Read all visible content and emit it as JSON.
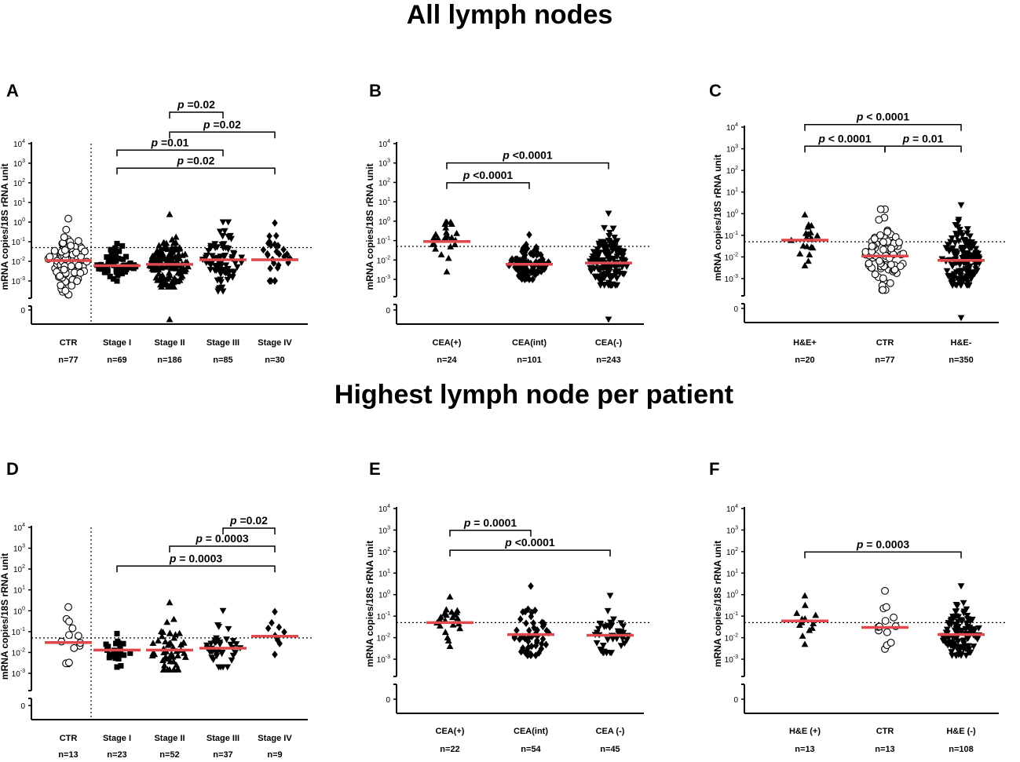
{
  "section_titles": {
    "top": "All lymph nodes",
    "bottom": "Highest lymph node per patient"
  },
  "y_axis": {
    "label": "mRNA copies/18S rRNA unit",
    "ticks": [
      {
        "base": "10",
        "exp": "4"
      },
      {
        "base": "10",
        "exp": "3"
      },
      {
        "base": "10",
        "exp": "2"
      },
      {
        "base": "10",
        "exp": "1"
      },
      {
        "base": "10",
        "exp": "0"
      },
      {
        "base": "10",
        "exp": "-1"
      },
      {
        "base": "10",
        "exp": "-2"
      },
      {
        "base": "10",
        "exp": "-3"
      }
    ],
    "zero_tick": "0"
  },
  "chart_data": [
    {
      "panel": "A",
      "type": "scatter",
      "threshold": 0.05,
      "ylim": [
        0.001,
        10000
      ],
      "scale": "log",
      "categories": [
        {
          "label": "CTR",
          "n_label": "n=77",
          "n": 77,
          "marker": "circle-open",
          "median": 0.011,
          "min": 0.0002,
          "max": 1.5
        },
        {
          "label": "Stage I",
          "n_label": "n=69",
          "n": 69,
          "marker": "square",
          "median": 0.006,
          "min": 0.001,
          "max": 0.08
        },
        {
          "label": "Stage II",
          "n_label": "n=186",
          "n": 186,
          "marker": "triangle-up",
          "median": 0.007,
          "min": 0.0005,
          "max": 2.5
        },
        {
          "label": "Stage III",
          "n_label": "n=85",
          "n": 85,
          "marker": "triangle-down",
          "median": 0.012,
          "min": 0.0003,
          "max": 1.0
        },
        {
          "label": "Stage IV",
          "n_label": "n=30",
          "n": 30,
          "marker": "diamond",
          "median": 0.012,
          "min": 0.001,
          "max": 0.9
        }
      ],
      "has_zero": [
        false,
        false,
        true,
        false,
        false
      ],
      "divider_after": 0,
      "comparisons": [
        {
          "from": 2,
          "to": 3,
          "label_p": "p",
          "label_rest": " =0.02",
          "level": 2.1
        },
        {
          "from": 2,
          "to": 4,
          "label_p": "p",
          "label_rest": " =0.02",
          "level": 1.0
        },
        {
          "from": 1,
          "to": 3,
          "label_p": "p",
          "label_rest": " =0.01",
          "level": 0.0
        },
        {
          "from": 1,
          "to": 4,
          "label_p": "p",
          "label_rest": " =0.02",
          "level": -1.0
        }
      ]
    },
    {
      "panel": "B",
      "type": "scatter",
      "threshold": 0.05,
      "ylim": [
        0.001,
        10000
      ],
      "scale": "log",
      "categories": [
        {
          "label": "CEA(+)",
          "n_label": "n=24",
          "n": 24,
          "marker": "triangle-up",
          "median": 0.09,
          "min": 0.0025,
          "max": 0.9
        },
        {
          "label": "CEA(int)",
          "n_label": "n=101",
          "n": 101,
          "marker": "diamond",
          "median": 0.006,
          "min": 0.001,
          "max": 0.2
        },
        {
          "label": "CEA(-)",
          "n_label": "n=243",
          "n": 243,
          "marker": "triangle-down",
          "median": 0.007,
          "min": 0.0005,
          "max": 2.5
        }
      ],
      "has_zero": [
        false,
        false,
        true
      ],
      "divider_after": null,
      "comparisons": [
        {
          "from": 0,
          "to": 2,
          "label_p": "p",
          "label_rest": " <0.0001",
          "level": 0.9
        },
        {
          "from": 0,
          "to": 1,
          "label_p": "p",
          "label_rest": " <0.0001",
          "level": -0.2
        }
      ]
    },
    {
      "panel": "C",
      "type": "scatter",
      "threshold": 0.05,
      "ylim": [
        0.001,
        10000
      ],
      "scale": "log",
      "categories": [
        {
          "label": "H&E+",
          "n_label": "n=20",
          "n": 20,
          "marker": "triangle-up",
          "median": 0.06,
          "min": 0.004,
          "max": 0.9
        },
        {
          "label": "CTR",
          "n_label": "n=77",
          "n": 77,
          "marker": "circle-open",
          "median": 0.011,
          "min": 0.0003,
          "max": 1.6
        },
        {
          "label": "H&E-",
          "n_label": "n=350",
          "n": 350,
          "marker": "triangle-down",
          "median": 0.007,
          "min": 0.0005,
          "max": 2.5
        }
      ],
      "has_zero": [
        false,
        false,
        true
      ],
      "divider_after": null,
      "comparisons": [
        {
          "from": 0,
          "to": 2,
          "label_p": "p",
          "label_rest": " < 0.0001",
          "level": 1.2
        },
        {
          "from": 0,
          "to": 1,
          "label_p": "p",
          "label_rest": " < 0.0001",
          "level": 0.0
        },
        {
          "from": 1,
          "to": 2,
          "label_p": "p",
          "label_rest": " = 0.01",
          "level": 0.0
        }
      ]
    },
    {
      "panel": "D",
      "type": "scatter",
      "threshold": 0.05,
      "ylim": [
        0.001,
        10000
      ],
      "scale": "log",
      "categories": [
        {
          "label": "CTR",
          "n_label": "n=13",
          "n": 13,
          "marker": "circle-open",
          "median": 0.03,
          "min": 0.003,
          "max": 1.5
        },
        {
          "label": "Stage I",
          "n_label": "n=23",
          "n": 23,
          "marker": "square",
          "median": 0.013,
          "min": 0.002,
          "max": 0.08
        },
        {
          "label": "Stage II",
          "n_label": "n=52",
          "n": 52,
          "marker": "triangle-up",
          "median": 0.013,
          "min": 0.0015,
          "max": 2.5
        },
        {
          "label": "Stage III",
          "n_label": "n=37",
          "n": 37,
          "marker": "triangle-down",
          "median": 0.016,
          "min": 0.002,
          "max": 1.0
        },
        {
          "label": "Stage IV",
          "n_label": "n=9",
          "n": 9,
          "marker": "diamond",
          "median": 0.06,
          "min": 0.008,
          "max": 0.9
        }
      ],
      "has_zero": [
        false,
        false,
        false,
        false,
        false
      ],
      "divider_after": 0,
      "comparisons": [
        {
          "from": 3,
          "to": 4,
          "label_p": "p",
          "label_rest": " =0.02",
          "level": 1.1
        },
        {
          "from": 2,
          "to": 4,
          "label_p": "p",
          "label_rest": " = 0.0003",
          "level": 0.1
        },
        {
          "from": 1,
          "to": 4,
          "label_p": "p",
          "label_rest": " = 0.0003",
          "level": -1.0
        }
      ]
    },
    {
      "panel": "E",
      "type": "scatter",
      "threshold": 0.05,
      "ylim": [
        0.001,
        10000
      ],
      "scale": "log",
      "categories": [
        {
          "label": "CEA(+)",
          "n_label": "n=22",
          "n": 22,
          "marker": "triangle-up",
          "median": 0.05,
          "min": 0.004,
          "max": 0.8
        },
        {
          "label": "CEA(int)",
          "n_label": "n=54",
          "n": 54,
          "marker": "diamond",
          "median": 0.014,
          "min": 0.0015,
          "max": 2.5
        },
        {
          "label": "CEA (-)",
          "n_label": "n=45",
          "n": 45,
          "marker": "triangle-down",
          "median": 0.013,
          "min": 0.002,
          "max": 0.9
        }
      ],
      "has_zero": [
        false,
        false,
        false
      ],
      "divider_after": null,
      "comparisons": [
        {
          "from": 0,
          "to": 1,
          "label_p": "p",
          "label_rest": " = 0.0001",
          "level": 1.5
        },
        {
          "from": 0,
          "to": 2,
          "label_p": "p",
          "label_rest": " <0.0001",
          "level": 0.4
        }
      ]
    },
    {
      "panel": "F",
      "type": "scatter",
      "threshold": 0.05,
      "ylim": [
        0.001,
        10000
      ],
      "scale": "log",
      "categories": [
        {
          "label": "H&E (+)",
          "n_label": "n=13",
          "n": 13,
          "marker": "triangle-up",
          "median": 0.06,
          "min": 0.005,
          "max": 0.9
        },
        {
          "label": "CTR",
          "n_label": "n=13",
          "n": 13,
          "marker": "circle-open",
          "median": 0.03,
          "min": 0.003,
          "max": 1.5
        },
        {
          "label": "H&E (-)",
          "n_label": "n=108",
          "n": 108,
          "marker": "triangle-down",
          "median": 0.014,
          "min": 0.0015,
          "max": 2.5
        }
      ],
      "has_zero": [
        false,
        false,
        false
      ],
      "divider_after": null,
      "comparisons": [
        {
          "from": 0,
          "to": 2,
          "label_p": "p",
          "label_rest": " = 0.0003",
          "level": 0.3
        }
      ]
    }
  ]
}
